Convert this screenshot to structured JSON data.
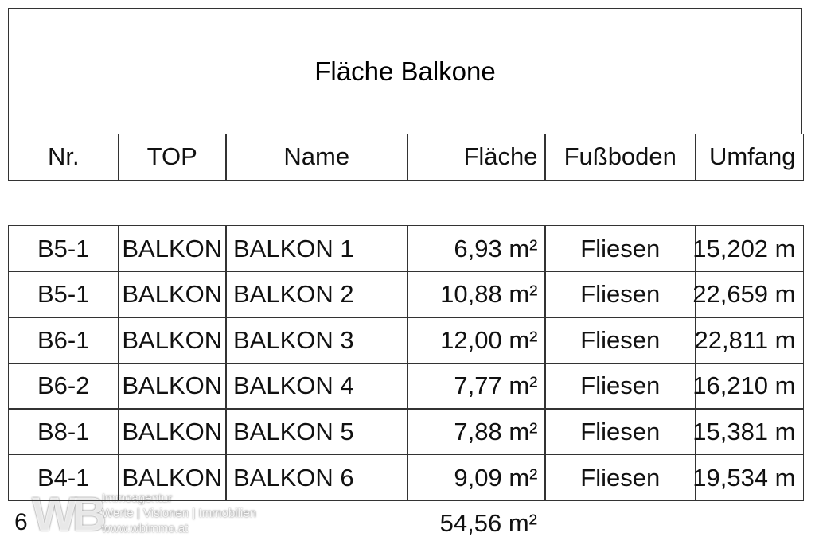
{
  "title": "Fläche Balkone",
  "table": {
    "headers": [
      "Nr.",
      "TOP",
      "Name",
      "Fläche",
      "Fußboden",
      "Umfang"
    ],
    "rows": [
      [
        "B5-1",
        "BALKON",
        "BALKON 1",
        "6,93 m²",
        "Fliesen",
        "15,202 m"
      ],
      [
        "B5-1",
        "BALKON",
        "BALKON 2",
        "10,88 m²",
        "Fliesen",
        "22,659 m"
      ],
      [
        "B6-1",
        "BALKON",
        "BALKON 3",
        "12,00 m²",
        "Fliesen",
        "22,811 m"
      ],
      [
        "B6-2",
        "BALKON",
        "BALKON 4",
        "7,77 m²",
        "Fliesen",
        "16,210 m"
      ],
      [
        "B8-1",
        "BALKON",
        "BALKON 5",
        "7,88 m²",
        "Fliesen",
        "15,381 m"
      ],
      [
        "B4-1",
        "BALKON",
        "BALKON 6",
        "9,09 m²",
        "Fliesen",
        "19,534 m"
      ]
    ]
  },
  "footer": {
    "count": "6",
    "total": "54,56 m²"
  },
  "watermark": {
    "logo": "WB",
    "name": "Immoagentur",
    "slogan": "Werte | Visionen | Immobilien",
    "url": "www.wbimmo.at"
  }
}
